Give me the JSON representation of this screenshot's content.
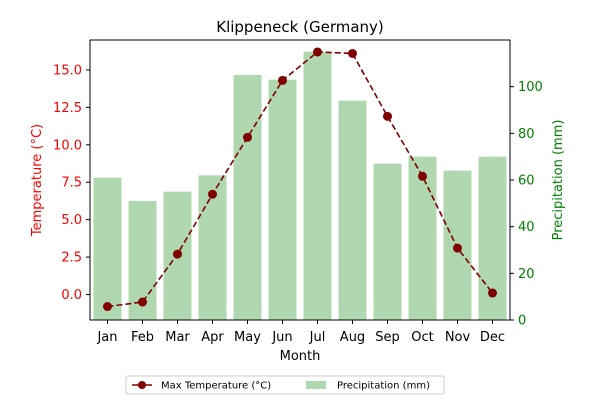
{
  "chart_data": {
    "type": "bar+line",
    "title": "Klippeneck (Germany)",
    "xlabel": "Month",
    "categories": [
      "Jan",
      "Feb",
      "Mar",
      "Apr",
      "May",
      "Jun",
      "Jul",
      "Aug",
      "Sep",
      "Oct",
      "Nov",
      "Dec"
    ],
    "left_axis": {
      "label": "Temperature (°C)",
      "color": "#ff0000",
      "ylim": [
        -1.7,
        17.0
      ],
      "ticks": [
        0.0,
        2.5,
        5.0,
        7.5,
        10.0,
        12.5,
        15.0
      ],
      "tick_labels": [
        "0.0",
        "2.5",
        "5.0",
        "7.5",
        "10.0",
        "12.5",
        "15.0"
      ]
    },
    "right_axis": {
      "label": "Precipitation (mm)",
      "color": "#008000",
      "ylim": [
        0,
        120
      ],
      "ticks": [
        0,
        20,
        40,
        60,
        80,
        100
      ],
      "tick_labels": [
        "0",
        "20",
        "40",
        "60",
        "80",
        "100"
      ]
    },
    "series": [
      {
        "name": "Max Temperature (°C)",
        "kind": "line",
        "axis": "left",
        "color": "#800000",
        "values": [
          -0.8,
          -0.5,
          2.7,
          6.7,
          10.5,
          14.3,
          16.2,
          16.1,
          11.9,
          7.9,
          3.1,
          0.1
        ]
      },
      {
        "name": "Precipitation (mm)",
        "kind": "bar",
        "axis": "right",
        "color": "#b0d8b0",
        "values": [
          61,
          51,
          55,
          62,
          105,
          103,
          115,
          94,
          67,
          70,
          64,
          70
        ]
      }
    ],
    "legend": {
      "position": "bottom-center"
    },
    "grid": false
  }
}
